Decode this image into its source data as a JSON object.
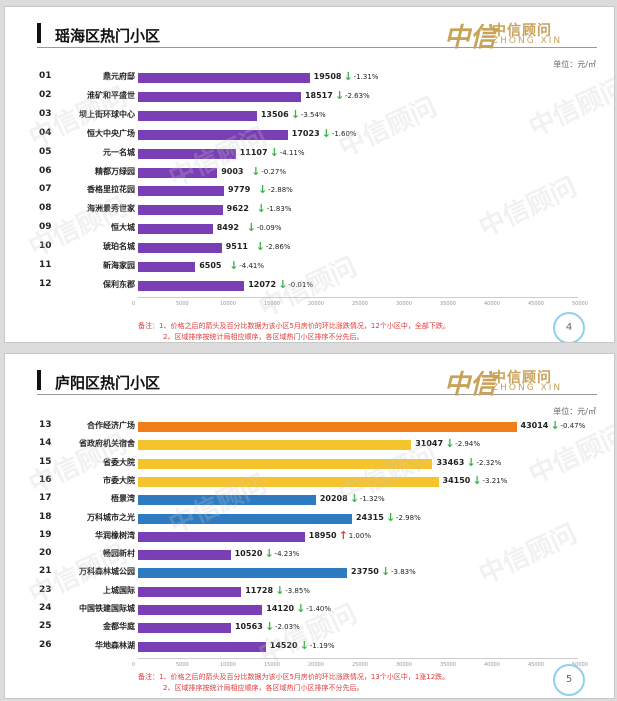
{
  "brand": {
    "mark": "中信",
    "cn": "中信顾问",
    "en": "ZHONG XIN"
  },
  "watermark": "中信顾问",
  "unit": "单位：元/㎡",
  "axis_ticks": [
    "0",
    "5000",
    "10000",
    "15000",
    "20000",
    "25000",
    "30000",
    "35000",
    "40000",
    "45000",
    "50000"
  ],
  "colors": {
    "purple": "#7b3fb5",
    "orange": "#f07d1a",
    "yellow": "#f5c32c",
    "blue": "#2f7bc2",
    "down": "#3bb34a",
    "up": "#e8413a"
  },
  "panels": [
    {
      "title": "瑶海区热门小区",
      "page": "4",
      "note_lines": [
        "备注：1、价格之后的箭头及百分比数据为该小区5月房价的环比涨跌情况，12个小区中，全部下跌。",
        "2、区域排序按统计局相应顺序，各区域热门小区排序不分先后。"
      ],
      "rows": [
        {
          "rank": "01",
          "name": "鼎元府邸",
          "value": 19508,
          "dir": "down",
          "pct": "-1.31%",
          "color": "purple"
        },
        {
          "rank": "02",
          "name": "淮矿和平盛世",
          "value": 18517,
          "dir": "down",
          "pct": "-2.63%",
          "color": "purple"
        },
        {
          "rank": "03",
          "name": "坝上街环球中心",
          "value": 13506,
          "dir": "down",
          "pct": "-3.54%",
          "color": "purple"
        },
        {
          "rank": "04",
          "name": "恒大中央广场",
          "value": 17023,
          "dir": "down",
          "pct": "-1.60%",
          "color": "purple"
        },
        {
          "rank": "05",
          "name": "元一名城",
          "value": 11107,
          "dir": "down",
          "pct": "-4.11%",
          "color": "purple"
        },
        {
          "rank": "06",
          "name": "精都万绿园",
          "value": 9003,
          "dir": "down",
          "pct": "-0.27%",
          "color": "purple"
        },
        {
          "rank": "07",
          "name": "香格里拉花园",
          "value": 9779,
          "dir": "down",
          "pct": "-2.88%",
          "color": "purple"
        },
        {
          "rank": "08",
          "name": "海洲景秀世家",
          "value": 9622,
          "dir": "down",
          "pct": "-1.83%",
          "color": "purple"
        },
        {
          "rank": "09",
          "name": "恒大城",
          "value": 8492,
          "dir": "down",
          "pct": "-0.09%",
          "color": "purple"
        },
        {
          "rank": "10",
          "name": "琥珀名城",
          "value": 9511,
          "dir": "down",
          "pct": "-2.86%",
          "color": "purple"
        },
        {
          "rank": "11",
          "name": "新海家园",
          "value": 6505,
          "dir": "down",
          "pct": "-4.41%",
          "color": "purple"
        },
        {
          "rank": "12",
          "name": "保利东郡",
          "value": 12072,
          "dir": "down",
          "pct": "-0.01%",
          "color": "purple"
        }
      ]
    },
    {
      "title": "庐阳区热门小区",
      "page": "5",
      "note_lines": [
        "备注：1、价格之后的箭头及百分比数据为该小区5月房价的环比涨跌情况，13个小区中，1涨12跌。",
        "2、区域排序按统计局相应顺序，各区域热门小区排序不分先后。"
      ],
      "rows": [
        {
          "rank": "13",
          "name": "合作经济广场",
          "value": 43014,
          "dir": "down",
          "pct": "-0.47%",
          "color": "orange"
        },
        {
          "rank": "14",
          "name": "省政府机关宿舍",
          "value": 31047,
          "dir": "down",
          "pct": "-2.94%",
          "color": "yellow"
        },
        {
          "rank": "15",
          "name": "省委大院",
          "value": 33463,
          "dir": "down",
          "pct": "-2.32%",
          "color": "yellow"
        },
        {
          "rank": "16",
          "name": "市委大院",
          "value": 34150,
          "dir": "down",
          "pct": "-3.21%",
          "color": "yellow"
        },
        {
          "rank": "17",
          "name": "梧景湾",
          "value": 20208,
          "dir": "down",
          "pct": "-1.32%",
          "color": "blue"
        },
        {
          "rank": "18",
          "name": "万科城市之光",
          "value": 24315,
          "dir": "down",
          "pct": "-2.98%",
          "color": "blue"
        },
        {
          "rank": "19",
          "name": "华润橡树湾",
          "value": 18950,
          "dir": "up",
          "pct": "1.00%",
          "color": "purple"
        },
        {
          "rank": "20",
          "name": "畅园新村",
          "value": 10520,
          "dir": "down",
          "pct": "-4.23%",
          "color": "purple"
        },
        {
          "rank": "21",
          "name": "万科森林城公园",
          "value": 23750,
          "dir": "down",
          "pct": "-3.83%",
          "color": "blue"
        },
        {
          "rank": "23",
          "name": "上城国际",
          "value": 11728,
          "dir": "down",
          "pct": "-3.85%",
          "color": "purple"
        },
        {
          "rank": "24",
          "name": "中国铁建国际城",
          "value": 14120,
          "dir": "down",
          "pct": "-1.40%",
          "color": "purple"
        },
        {
          "rank": "25",
          "name": "金都华庭",
          "value": 10563,
          "dir": "down",
          "pct": "-2.03%",
          "color": "purple"
        },
        {
          "rank": "26",
          "name": "华地森林湖",
          "value": 14520,
          "dir": "down",
          "pct": "-1.19%",
          "color": "purple"
        }
      ]
    }
  ],
  "chart_data": [
    {
      "type": "bar",
      "title": "瑶海区热门小区",
      "categories": [
        "鼎元府邸",
        "淮矿和平盛世",
        "坝上街环球中心",
        "恒大中央广场",
        "元一名城",
        "精都万绿园",
        "香格里拉花园",
        "海洲景秀世家",
        "恒大城",
        "琥珀名城",
        "新海家园",
        "保利东郡"
      ],
      "values": [
        19508,
        18517,
        13506,
        17023,
        11107,
        9003,
        9779,
        9622,
        8492,
        9511,
        6505,
        12072
      ],
      "xlim": [
        0,
        50000
      ]
    },
    {
      "type": "bar",
      "title": "庐阳区热门小区",
      "categories": [
        "合作经济广场",
        "省政府机关宿舍",
        "省委大院",
        "市委大院",
        "梧景湾",
        "万科城市之光",
        "华润橡树湾",
        "畅园新村",
        "万科森林城公园",
        "上城国际",
        "中国铁建国际城",
        "金都华庭",
        "华地森林湖"
      ],
      "values": [
        43014,
        31047,
        33463,
        34150,
        20208,
        24315,
        18950,
        10520,
        23750,
        11728,
        14120,
        10563,
        14520
      ],
      "xlim": [
        0,
        50000
      ]
    }
  ]
}
